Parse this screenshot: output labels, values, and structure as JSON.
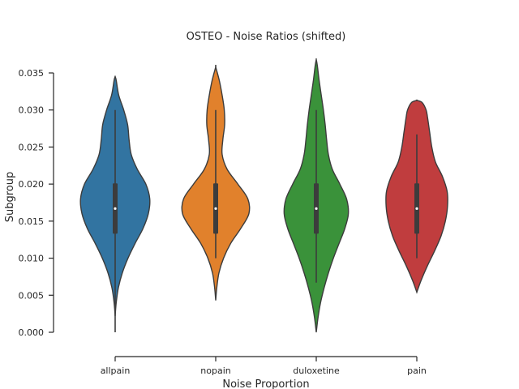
{
  "chart_data": {
    "type": "violin",
    "title": "OSTEO - Noise Ratios (shifted)",
    "xlabel": "Noise Proportion",
    "ylabel": "Subgroup",
    "ylim": [
      0.0,
      0.035
    ],
    "yticks": [
      "0.000",
      "0.005",
      "0.010",
      "0.015",
      "0.020",
      "0.025",
      "0.030",
      "0.035"
    ],
    "grid": false,
    "categories": [
      "allpain",
      "nopain",
      "duloxetine",
      "pain"
    ],
    "series": [
      {
        "category": "allpain",
        "color": "#3274a1",
        "min": 0.0022,
        "max": 0.0345,
        "q1": 0.0133,
        "median": 0.0167,
        "q3": 0.0201,
        "whisker_low": 0.0,
        "whisker_high": 0.03,
        "profile": [
          [
            0.0022,
            0.0
          ],
          [
            0.004,
            0.03
          ],
          [
            0.006,
            0.09
          ],
          [
            0.008,
            0.2
          ],
          [
            0.01,
            0.36
          ],
          [
            0.012,
            0.56
          ],
          [
            0.014,
            0.78
          ],
          [
            0.016,
            0.93
          ],
          [
            0.018,
            0.97
          ],
          [
            0.02,
            0.86
          ],
          [
            0.022,
            0.62
          ],
          [
            0.024,
            0.45
          ],
          [
            0.026,
            0.39
          ],
          [
            0.028,
            0.35
          ],
          [
            0.03,
            0.24
          ],
          [
            0.032,
            0.1
          ],
          [
            0.034,
            0.03
          ],
          [
            0.0345,
            0.0
          ]
        ]
      },
      {
        "category": "nopain",
        "color": "#e1812c",
        "min": 0.0043,
        "max": 0.0358,
        "q1": 0.0133,
        "median": 0.0167,
        "q3": 0.0201,
        "whisker_low": 0.01,
        "whisker_high": 0.03,
        "profile": [
          [
            0.0043,
            0.0
          ],
          [
            0.006,
            0.03
          ],
          [
            0.008,
            0.09
          ],
          [
            0.01,
            0.22
          ],
          [
            0.012,
            0.42
          ],
          [
            0.014,
            0.7
          ],
          [
            0.016,
            0.93
          ],
          [
            0.018,
            0.9
          ],
          [
            0.02,
            0.62
          ],
          [
            0.022,
            0.32
          ],
          [
            0.024,
            0.18
          ],
          [
            0.026,
            0.2
          ],
          [
            0.028,
            0.25
          ],
          [
            0.03,
            0.24
          ],
          [
            0.032,
            0.18
          ],
          [
            0.034,
            0.1
          ],
          [
            0.0358,
            0.0
          ]
        ]
      },
      {
        "category": "duloxetine",
        "color": "#3a923a",
        "min": 0.0,
        "max": 0.0368,
        "q1": 0.0133,
        "median": 0.0167,
        "q3": 0.0201,
        "whisker_low": 0.0067,
        "whisker_high": 0.03,
        "profile": [
          [
            0.0,
            0.0
          ],
          [
            0.002,
            0.05
          ],
          [
            0.004,
            0.12
          ],
          [
            0.006,
            0.22
          ],
          [
            0.008,
            0.34
          ],
          [
            0.01,
            0.48
          ],
          [
            0.012,
            0.64
          ],
          [
            0.014,
            0.8
          ],
          [
            0.016,
            0.9
          ],
          [
            0.018,
            0.85
          ],
          [
            0.02,
            0.66
          ],
          [
            0.022,
            0.45
          ],
          [
            0.024,
            0.34
          ],
          [
            0.026,
            0.29
          ],
          [
            0.028,
            0.25
          ],
          [
            0.03,
            0.2
          ],
          [
            0.032,
            0.14
          ],
          [
            0.034,
            0.08
          ],
          [
            0.036,
            0.03
          ],
          [
            0.0368,
            0.0
          ]
        ]
      },
      {
        "category": "pain",
        "color": "#c03d3e",
        "min": 0.0054,
        "max": 0.0313,
        "q1": 0.0133,
        "median": 0.0167,
        "q3": 0.0201,
        "whisker_low": 0.01,
        "whisker_high": 0.0267,
        "profile": [
          [
            0.0054,
            0.0
          ],
          [
            0.007,
            0.12
          ],
          [
            0.009,
            0.3
          ],
          [
            0.011,
            0.5
          ],
          [
            0.013,
            0.68
          ],
          [
            0.015,
            0.8
          ],
          [
            0.017,
            0.86
          ],
          [
            0.019,
            0.85
          ],
          [
            0.021,
            0.72
          ],
          [
            0.023,
            0.52
          ],
          [
            0.025,
            0.42
          ],
          [
            0.027,
            0.36
          ],
          [
            0.029,
            0.3
          ],
          [
            0.03,
            0.26
          ],
          [
            0.031,
            0.15
          ],
          [
            0.0313,
            0.0
          ]
        ]
      }
    ]
  }
}
